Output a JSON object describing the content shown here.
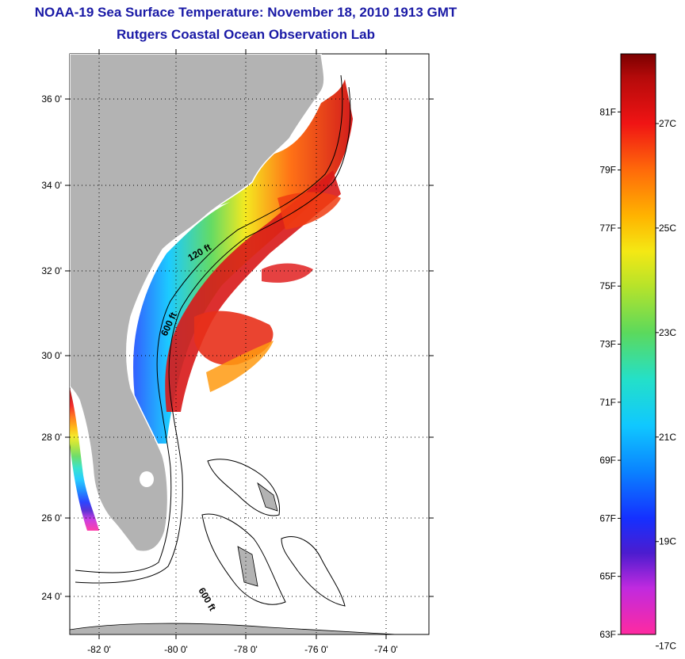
{
  "header": {
    "title": "NOAA-19 Sea Surface Temperature:  November 18, 2010 1913 GMT",
    "subtitle": "Rutgers Coastal Ocean Observation Lab"
  },
  "map": {
    "lat_labels": [
      "36 0'",
      "34 0'",
      "32 0'",
      "30 0'",
      "28 0'",
      "26 0'",
      "24 0'"
    ],
    "lon_labels": [
      "-82 0'",
      "-80 0'",
      "-78 0'",
      "-76 0'",
      "-74 0'"
    ],
    "annotations": [
      "120 ft",
      "600 ft",
      "600 ft"
    ],
    "colors": {
      "land": "#b3b3b3",
      "ocean": "#ffffff"
    }
  },
  "colorbar": {
    "fahrenheit": [
      "81F",
      "79F",
      "77F",
      "75F",
      "73F",
      "71F",
      "69F",
      "67F",
      "65F",
      "63F"
    ],
    "celsius": [
      "27C",
      "25C",
      "23C",
      "21C",
      "19C",
      "17C"
    ],
    "range_f": [
      63,
      83
    ]
  }
}
